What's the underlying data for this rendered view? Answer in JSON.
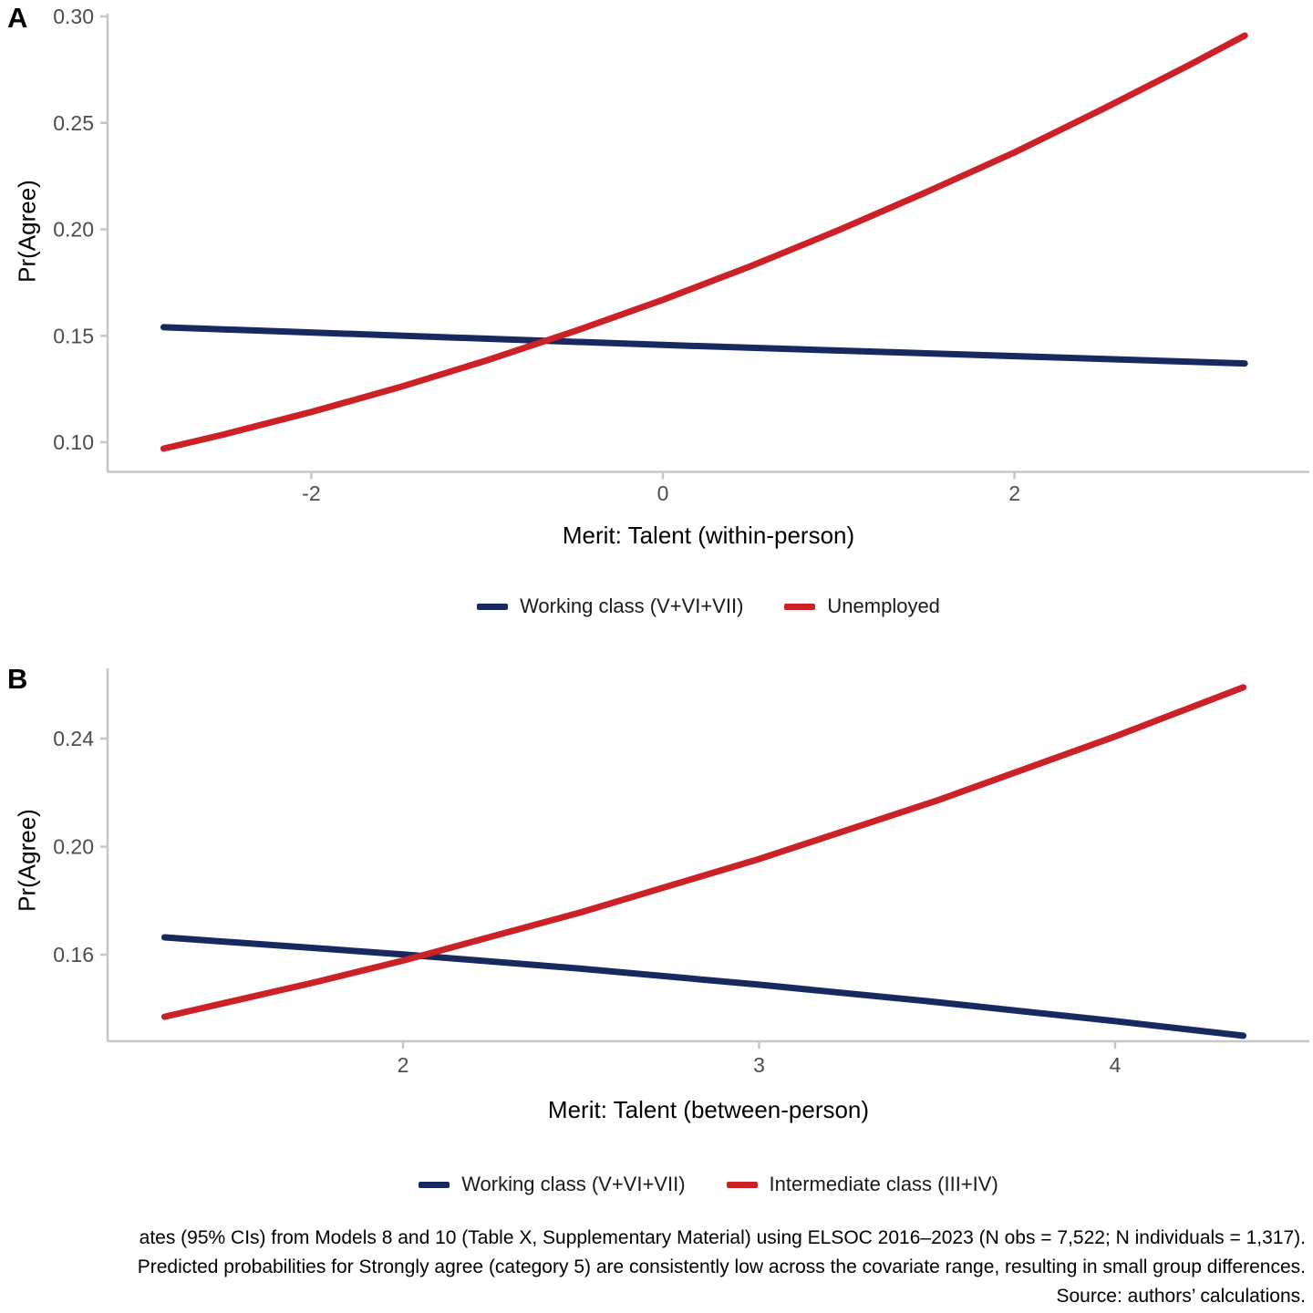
{
  "figure": {
    "panel_a_tag": "A",
    "panel_b_tag": "B"
  },
  "colors": {
    "navy": "#17295e",
    "red": "#cb2127",
    "axis_line": "#c6c6c6",
    "tick_text": "#4d4d4d",
    "text": "#000000"
  },
  "legend_a": {
    "item1": "Working class (V+VI+VII)",
    "item2": "Unemployed"
  },
  "legend_b": {
    "item1": "Working class (V+VI+VII)",
    "item2": "Intermediate class (III+IV)"
  },
  "caption": {
    "line1": "ates (95% CIs) from Models 8 and 10 (Table X, Supplementary Material) using ELSOC 2016–2023 (N obs = 7,522; N individuals = 1,317).",
    "line2": "Predicted probabilities for Strongly agree (category 5) are consistently low across the covariate range, resulting in small group differences.",
    "line3": "Source: authors’ calculations."
  },
  "chart_data": [
    {
      "panel": "A",
      "type": "line",
      "title": "",
      "xlabel": "Merit: Talent (within-person)",
      "ylabel": "Pr(Agree)",
      "xlim": [
        -3.16,
        3.66
      ],
      "ylim": [
        0.086,
        0.301
      ],
      "x_ticks": [
        -2,
        0,
        2
      ],
      "x_tick_labels": [
        "-2",
        "0",
        "2"
      ],
      "y_ticks": [
        0.1,
        0.15,
        0.2,
        0.25,
        0.3
      ],
      "y_tick_labels": [
        "0.10",
        "0.15",
        "0.20",
        "0.25",
        "0.30"
      ],
      "grid": false,
      "legend_position": "bottom",
      "series": [
        {
          "name": "Working class (V+VI+VII)",
          "color": "navy",
          "x": [
            -2.84,
            0,
            3.31
          ],
          "y": [
            0.154,
            0.1457,
            0.137
          ]
        },
        {
          "name": "Unemployed",
          "color": "red",
          "x": [
            -2.84,
            -2.5,
            -2,
            -1.5,
            -1,
            -0.5,
            0,
            0.5,
            1,
            1.5,
            2,
            2.5,
            3,
            3.31
          ],
          "y": [
            0.097,
            0.1036,
            0.1142,
            0.1258,
            0.1385,
            0.1522,
            0.1669,
            0.1827,
            0.1996,
            0.2175,
            0.2361,
            0.2564,
            0.2774,
            0.291
          ]
        }
      ]
    },
    {
      "panel": "B",
      "type": "line",
      "title": "",
      "xlabel": "Merit: Talent (between-person)",
      "ylabel": "Pr(Agree)",
      "xlim": [
        1.17,
        4.54
      ],
      "ylim": [
        0.128,
        0.264
      ],
      "x_ticks": [
        2,
        3,
        4
      ],
      "x_tick_labels": [
        "2",
        "3",
        "4"
      ],
      "y_ticks": [
        0.16,
        0.2,
        0.24
      ],
      "y_tick_labels": [
        "0.16",
        "0.20",
        "0.24"
      ],
      "grid": false,
      "legend_position": "bottom",
      "series": [
        {
          "name": "Working class (V+VI+VII)",
          "color": "navy",
          "x": [
            1.33,
            2,
            2.5,
            3,
            3.5,
            4,
            4.36
          ],
          "y": [
            0.1664,
            0.1601,
            0.1548,
            0.1489,
            0.1424,
            0.1354,
            0.13
          ]
        },
        {
          "name": "Intermediate class (III+IV)",
          "color": "red",
          "x": [
            1.33,
            1.75,
            2,
            2.5,
            3,
            3.5,
            4,
            4.36
          ],
          "y": [
            0.137,
            0.1497,
            0.1578,
            0.1757,
            0.1954,
            0.2171,
            0.2408,
            0.259
          ]
        }
      ]
    }
  ]
}
